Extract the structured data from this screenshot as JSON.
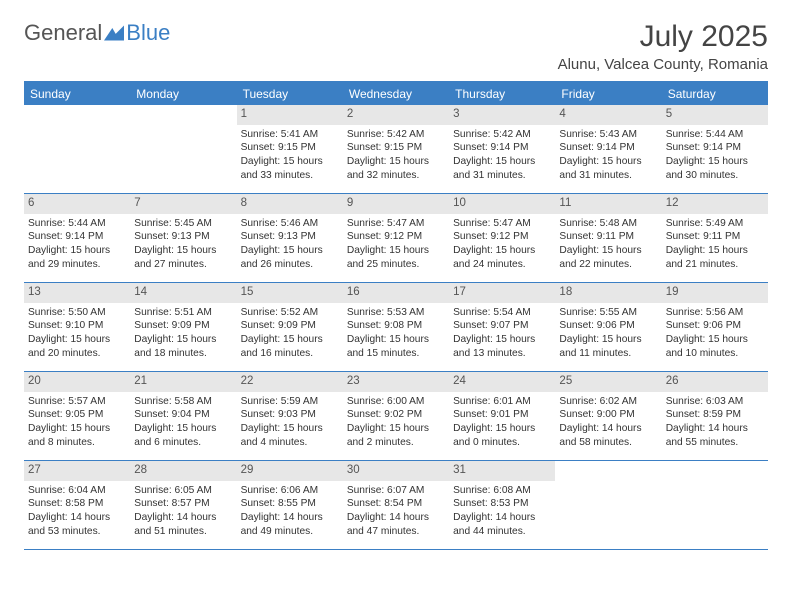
{
  "logo": {
    "part1": "General",
    "part2": "Blue"
  },
  "title": "July 2025",
  "location": "Alunu, Valcea County, Romania",
  "colors": {
    "brand": "#3b7fc4",
    "daynum_bg": "#e7e7e7",
    "text": "#333333",
    "background": "#ffffff"
  },
  "day_names": [
    "Sunday",
    "Monday",
    "Tuesday",
    "Wednesday",
    "Thursday",
    "Friday",
    "Saturday"
  ],
  "weeks": [
    [
      {
        "empty": true
      },
      {
        "empty": true
      },
      {
        "n": "1",
        "sr": "Sunrise: 5:41 AM",
        "ss": "Sunset: 9:15 PM",
        "d1": "Daylight: 15 hours",
        "d2": "and 33 minutes."
      },
      {
        "n": "2",
        "sr": "Sunrise: 5:42 AM",
        "ss": "Sunset: 9:15 PM",
        "d1": "Daylight: 15 hours",
        "d2": "and 32 minutes."
      },
      {
        "n": "3",
        "sr": "Sunrise: 5:42 AM",
        "ss": "Sunset: 9:14 PM",
        "d1": "Daylight: 15 hours",
        "d2": "and 31 minutes."
      },
      {
        "n": "4",
        "sr": "Sunrise: 5:43 AM",
        "ss": "Sunset: 9:14 PM",
        "d1": "Daylight: 15 hours",
        "d2": "and 31 minutes."
      },
      {
        "n": "5",
        "sr": "Sunrise: 5:44 AM",
        "ss": "Sunset: 9:14 PM",
        "d1": "Daylight: 15 hours",
        "d2": "and 30 minutes."
      }
    ],
    [
      {
        "n": "6",
        "sr": "Sunrise: 5:44 AM",
        "ss": "Sunset: 9:14 PM",
        "d1": "Daylight: 15 hours",
        "d2": "and 29 minutes."
      },
      {
        "n": "7",
        "sr": "Sunrise: 5:45 AM",
        "ss": "Sunset: 9:13 PM",
        "d1": "Daylight: 15 hours",
        "d2": "and 27 minutes."
      },
      {
        "n": "8",
        "sr": "Sunrise: 5:46 AM",
        "ss": "Sunset: 9:13 PM",
        "d1": "Daylight: 15 hours",
        "d2": "and 26 minutes."
      },
      {
        "n": "9",
        "sr": "Sunrise: 5:47 AM",
        "ss": "Sunset: 9:12 PM",
        "d1": "Daylight: 15 hours",
        "d2": "and 25 minutes."
      },
      {
        "n": "10",
        "sr": "Sunrise: 5:47 AM",
        "ss": "Sunset: 9:12 PM",
        "d1": "Daylight: 15 hours",
        "d2": "and 24 minutes."
      },
      {
        "n": "11",
        "sr": "Sunrise: 5:48 AM",
        "ss": "Sunset: 9:11 PM",
        "d1": "Daylight: 15 hours",
        "d2": "and 22 minutes."
      },
      {
        "n": "12",
        "sr": "Sunrise: 5:49 AM",
        "ss": "Sunset: 9:11 PM",
        "d1": "Daylight: 15 hours",
        "d2": "and 21 minutes."
      }
    ],
    [
      {
        "n": "13",
        "sr": "Sunrise: 5:50 AM",
        "ss": "Sunset: 9:10 PM",
        "d1": "Daylight: 15 hours",
        "d2": "and 20 minutes."
      },
      {
        "n": "14",
        "sr": "Sunrise: 5:51 AM",
        "ss": "Sunset: 9:09 PM",
        "d1": "Daylight: 15 hours",
        "d2": "and 18 minutes."
      },
      {
        "n": "15",
        "sr": "Sunrise: 5:52 AM",
        "ss": "Sunset: 9:09 PM",
        "d1": "Daylight: 15 hours",
        "d2": "and 16 minutes."
      },
      {
        "n": "16",
        "sr": "Sunrise: 5:53 AM",
        "ss": "Sunset: 9:08 PM",
        "d1": "Daylight: 15 hours",
        "d2": "and 15 minutes."
      },
      {
        "n": "17",
        "sr": "Sunrise: 5:54 AM",
        "ss": "Sunset: 9:07 PM",
        "d1": "Daylight: 15 hours",
        "d2": "and 13 minutes."
      },
      {
        "n": "18",
        "sr": "Sunrise: 5:55 AM",
        "ss": "Sunset: 9:06 PM",
        "d1": "Daylight: 15 hours",
        "d2": "and 11 minutes."
      },
      {
        "n": "19",
        "sr": "Sunrise: 5:56 AM",
        "ss": "Sunset: 9:06 PM",
        "d1": "Daylight: 15 hours",
        "d2": "and 10 minutes."
      }
    ],
    [
      {
        "n": "20",
        "sr": "Sunrise: 5:57 AM",
        "ss": "Sunset: 9:05 PM",
        "d1": "Daylight: 15 hours",
        "d2": "and 8 minutes."
      },
      {
        "n": "21",
        "sr": "Sunrise: 5:58 AM",
        "ss": "Sunset: 9:04 PM",
        "d1": "Daylight: 15 hours",
        "d2": "and 6 minutes."
      },
      {
        "n": "22",
        "sr": "Sunrise: 5:59 AM",
        "ss": "Sunset: 9:03 PM",
        "d1": "Daylight: 15 hours",
        "d2": "and 4 minutes."
      },
      {
        "n": "23",
        "sr": "Sunrise: 6:00 AM",
        "ss": "Sunset: 9:02 PM",
        "d1": "Daylight: 15 hours",
        "d2": "and 2 minutes."
      },
      {
        "n": "24",
        "sr": "Sunrise: 6:01 AM",
        "ss": "Sunset: 9:01 PM",
        "d1": "Daylight: 15 hours",
        "d2": "and 0 minutes."
      },
      {
        "n": "25",
        "sr": "Sunrise: 6:02 AM",
        "ss": "Sunset: 9:00 PM",
        "d1": "Daylight: 14 hours",
        "d2": "and 58 minutes."
      },
      {
        "n": "26",
        "sr": "Sunrise: 6:03 AM",
        "ss": "Sunset: 8:59 PM",
        "d1": "Daylight: 14 hours",
        "d2": "and 55 minutes."
      }
    ],
    [
      {
        "n": "27",
        "sr": "Sunrise: 6:04 AM",
        "ss": "Sunset: 8:58 PM",
        "d1": "Daylight: 14 hours",
        "d2": "and 53 minutes."
      },
      {
        "n": "28",
        "sr": "Sunrise: 6:05 AM",
        "ss": "Sunset: 8:57 PM",
        "d1": "Daylight: 14 hours",
        "d2": "and 51 minutes."
      },
      {
        "n": "29",
        "sr": "Sunrise: 6:06 AM",
        "ss": "Sunset: 8:55 PM",
        "d1": "Daylight: 14 hours",
        "d2": "and 49 minutes."
      },
      {
        "n": "30",
        "sr": "Sunrise: 6:07 AM",
        "ss": "Sunset: 8:54 PM",
        "d1": "Daylight: 14 hours",
        "d2": "and 47 minutes."
      },
      {
        "n": "31",
        "sr": "Sunrise: 6:08 AM",
        "ss": "Sunset: 8:53 PM",
        "d1": "Daylight: 14 hours",
        "d2": "and 44 minutes."
      },
      {
        "empty": true
      },
      {
        "empty": true
      }
    ]
  ]
}
